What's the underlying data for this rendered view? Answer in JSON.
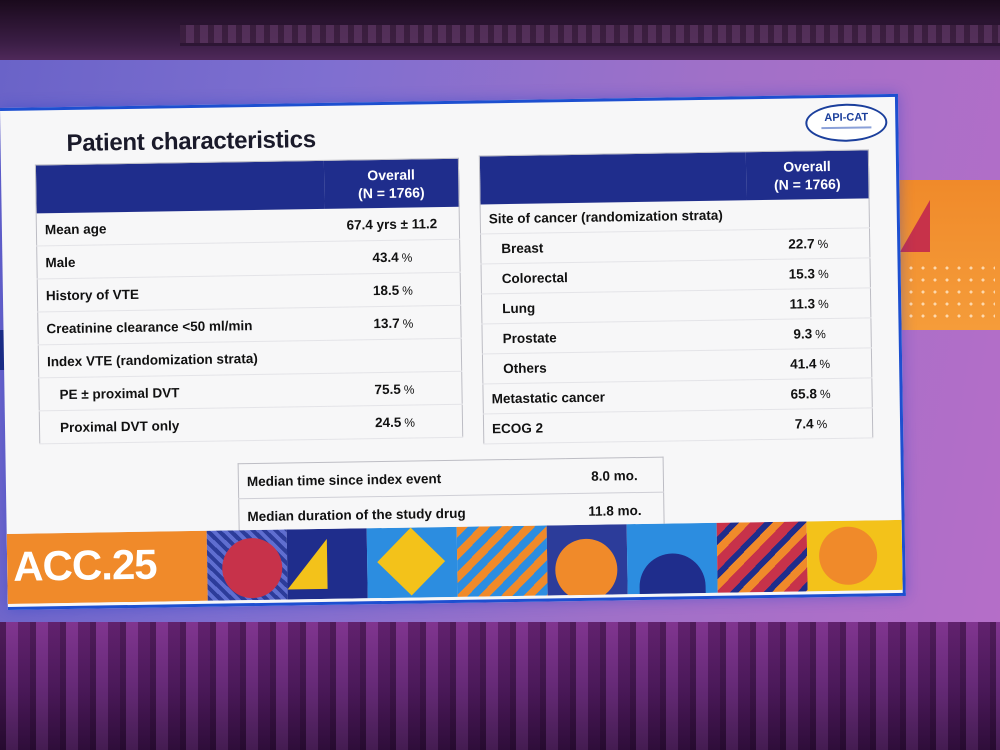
{
  "slide": {
    "title": "Patient characteristics",
    "logo_text": "API-CAT",
    "footer_brand": "ACC.25"
  },
  "left_table": {
    "header_line1": "Overall",
    "header_line2": "(N = 1766)",
    "rows": [
      {
        "label": "Mean age",
        "value": "67.4 yrs ± 11.2",
        "unit": ""
      },
      {
        "label": "Male",
        "value": "43.4",
        "unit": "%"
      },
      {
        "label": "History of VTE",
        "value": "18.5",
        "unit": "%"
      },
      {
        "label": "Creatinine clearance <50 ml/min",
        "value": "13.7",
        "unit": "%"
      },
      {
        "label": "Index VTE (randomization strata)",
        "value": "",
        "unit": ""
      },
      {
        "label": "PE ± proximal DVT",
        "value": "75.5",
        "unit": "%"
      },
      {
        "label": "Proximal DVT only",
        "value": "24.5",
        "unit": "%"
      }
    ]
  },
  "right_table": {
    "header_line1": "Overall",
    "header_line2": "(N = 1766)",
    "rows": [
      {
        "label": "Site of cancer (randomization strata)",
        "value": "",
        "unit": ""
      },
      {
        "label": "Breast",
        "value": "22.7",
        "unit": "%"
      },
      {
        "label": "Colorectal",
        "value": "15.3",
        "unit": "%"
      },
      {
        "label": "Lung",
        "value": "11.3",
        "unit": "%"
      },
      {
        "label": "Prostate",
        "value": "9.3",
        "unit": "%"
      },
      {
        "label": "Others",
        "value": "41.4",
        "unit": "%"
      },
      {
        "label": "Metastatic cancer",
        "value": "65.8",
        "unit": "%"
      },
      {
        "label": "ECOG 2",
        "value": "7.4",
        "unit": "%"
      }
    ]
  },
  "bottom_table": {
    "rows": [
      {
        "label": "Median time since index event",
        "value": "8.0 mo."
      },
      {
        "label": "Median duration of the study drug",
        "value": "11.8 mo."
      }
    ]
  },
  "colors": {
    "header_blue": "#1f2d8c",
    "slide_border": "#1d4fd0",
    "acc_orange": "#f08a2a"
  }
}
